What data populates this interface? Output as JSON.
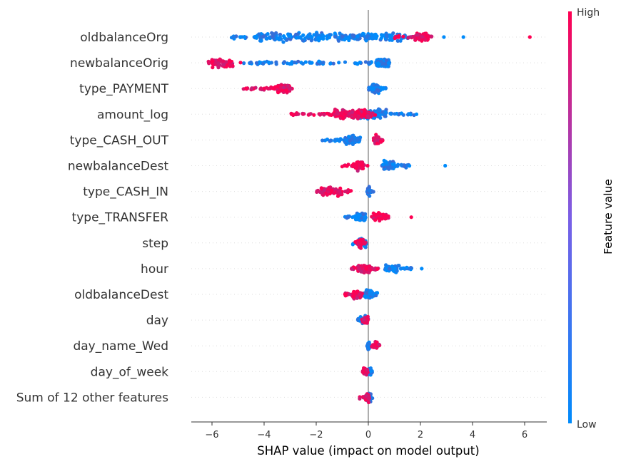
{
  "chart_data": {
    "type": "scatter",
    "subtype": "shap-beeswarm",
    "xlabel": "SHAP value (impact on model output)",
    "xlim": [
      -6.8,
      6.9
    ],
    "xticks": [
      -6,
      -4,
      -2,
      0,
      2,
      4,
      6
    ],
    "xtick_labels": [
      "−6",
      "−4",
      "−2",
      "0",
      "2",
      "4",
      "6"
    ],
    "colorbar": {
      "title": "Feature value",
      "high_label": "High",
      "low_label": "Low",
      "low_color": "#008bfb",
      "high_color": "#ff0052"
    },
    "features": [
      {
        "name": "oldbalanceOrg",
        "low": {
          "range": [
            -5.3,
            1.8
          ],
          "core": [
            -4.3,
            1.5
          ],
          "n": 260
        },
        "high": {
          "range": [
            1.0,
            2.5
          ],
          "core": [
            1.8,
            2.3
          ],
          "n": 80
        },
        "outliers": [
          [
            2.9,
            0.0
          ],
          [
            3.65,
            0.0
          ],
          [
            6.2,
            1.0
          ]
        ]
      },
      {
        "name": "newbalanceOrig",
        "low": {
          "range": [
            -4.8,
            0.9
          ],
          "core": [
            0.3,
            0.8
          ],
          "n": 190
        },
        "high": {
          "range": [
            -6.2,
            -4.9
          ],
          "core": [
            -6.0,
            -5.2
          ],
          "n": 70
        },
        "outliers": [
          [
            -2.2,
            0.0
          ]
        ]
      },
      {
        "name": "type_PAYMENT",
        "low": {
          "range": [
            0.0,
            0.7
          ],
          "core": [
            0.1,
            0.4
          ],
          "n": 90
        },
        "high": {
          "range": [
            -4.8,
            -2.9
          ],
          "core": [
            -3.5,
            -3.0
          ],
          "n": 110
        },
        "outliers": []
      },
      {
        "name": "amount_log",
        "low": {
          "range": [
            -1.0,
            1.8
          ],
          "core": [
            -0.4,
            0.7
          ],
          "n": 150
        },
        "high": {
          "range": [
            -3.0,
            0.3
          ],
          "core": [
            -1.3,
            0.1
          ],
          "n": 180
        },
        "outliers": [
          [
            1.6,
            0.0
          ],
          [
            1.85,
            0.0
          ]
        ]
      },
      {
        "name": "type_CASH_OUT",
        "low": {
          "range": [
            -1.8,
            -0.3
          ],
          "core": [
            -0.9,
            -0.3
          ],
          "n": 100
        },
        "high": {
          "range": [
            0.15,
            0.55
          ],
          "core": [
            0.2,
            0.4
          ],
          "n": 60
        },
        "outliers": []
      },
      {
        "name": "newbalanceDest",
        "low": {
          "range": [
            0.5,
            1.6
          ],
          "core": [
            0.6,
            1.0
          ],
          "n": 110
        },
        "high": {
          "range": [
            -1.1,
            0.0
          ],
          "core": [
            -0.5,
            -0.2
          ],
          "n": 80
        },
        "outliers": [
          [
            2.95,
            0.0
          ]
        ]
      },
      {
        "name": "type_CASH_IN",
        "low": {
          "range": [
            -0.05,
            0.2
          ],
          "core": [
            -0.03,
            0.05
          ],
          "n": 40
        },
        "high": {
          "range": [
            -2.0,
            -0.6
          ],
          "core": [
            -1.8,
            -1.0
          ],
          "n": 80
        },
        "outliers": []
      },
      {
        "name": "type_TRANSFER",
        "low": {
          "range": [
            -0.9,
            0.0
          ],
          "core": [
            -0.5,
            -0.1
          ],
          "n": 80
        },
        "high": {
          "range": [
            0.1,
            0.8
          ],
          "core": [
            0.2,
            0.7
          ],
          "n": 50
        },
        "outliers": [
          [
            1.65,
            1.0
          ]
        ]
      },
      {
        "name": "step",
        "low": {
          "range": [
            -0.6,
            0.0
          ],
          "core": [
            -0.4,
            -0.1
          ],
          "n": 60
        },
        "high": {
          "range": [
            -0.5,
            -0.1
          ],
          "core": [
            -0.4,
            -0.2
          ],
          "n": 40
        },
        "outliers": []
      },
      {
        "name": "hour",
        "low": {
          "range": [
            0.6,
            1.7
          ],
          "core": [
            0.6,
            1.2
          ],
          "n": 60
        },
        "high": {
          "range": [
            -0.7,
            0.4
          ],
          "core": [
            -0.4,
            0.1
          ],
          "n": 120
        },
        "outliers": [
          [
            2.05,
            0.0
          ]
        ]
      },
      {
        "name": "oldbalanceDest",
        "low": {
          "range": [
            -0.3,
            0.35
          ],
          "core": [
            -0.1,
            0.15
          ],
          "n": 70
        },
        "high": {
          "range": [
            -0.9,
            -0.2
          ],
          "core": [
            -0.6,
            -0.3
          ],
          "n": 60
        },
        "outliers": []
      },
      {
        "name": "day",
        "low": {
          "range": [
            -0.4,
            0.0
          ],
          "core": [
            -0.3,
            -0.1
          ],
          "n": 50
        },
        "high": {
          "range": [
            -0.25,
            0.05
          ],
          "core": [
            -0.15,
            0.0
          ],
          "n": 30
        },
        "outliers": []
      },
      {
        "name": "day_name_Wed",
        "low": {
          "range": [
            -0.05,
            0.08
          ],
          "core": [
            -0.02,
            0.04
          ],
          "n": 40
        },
        "high": {
          "range": [
            0.1,
            0.45
          ],
          "core": [
            0.15,
            0.35
          ],
          "n": 30
        },
        "outliers": []
      },
      {
        "name": "day_of_week",
        "low": {
          "range": [
            -0.05,
            0.15
          ],
          "core": [
            0.0,
            0.1
          ],
          "n": 40
        },
        "high": {
          "range": [
            -0.3,
            0.0
          ],
          "core": [
            -0.2,
            -0.05
          ],
          "n": 40
        },
        "outliers": []
      },
      {
        "name": "Sum of 12 other features",
        "low": {
          "range": [
            -0.2,
            0.2
          ],
          "core": [
            -0.05,
            0.1
          ],
          "n": 50
        },
        "high": {
          "range": [
            -0.35,
            0.15
          ],
          "core": [
            -0.1,
            0.05
          ],
          "n": 40
        },
        "outliers": []
      }
    ]
  }
}
